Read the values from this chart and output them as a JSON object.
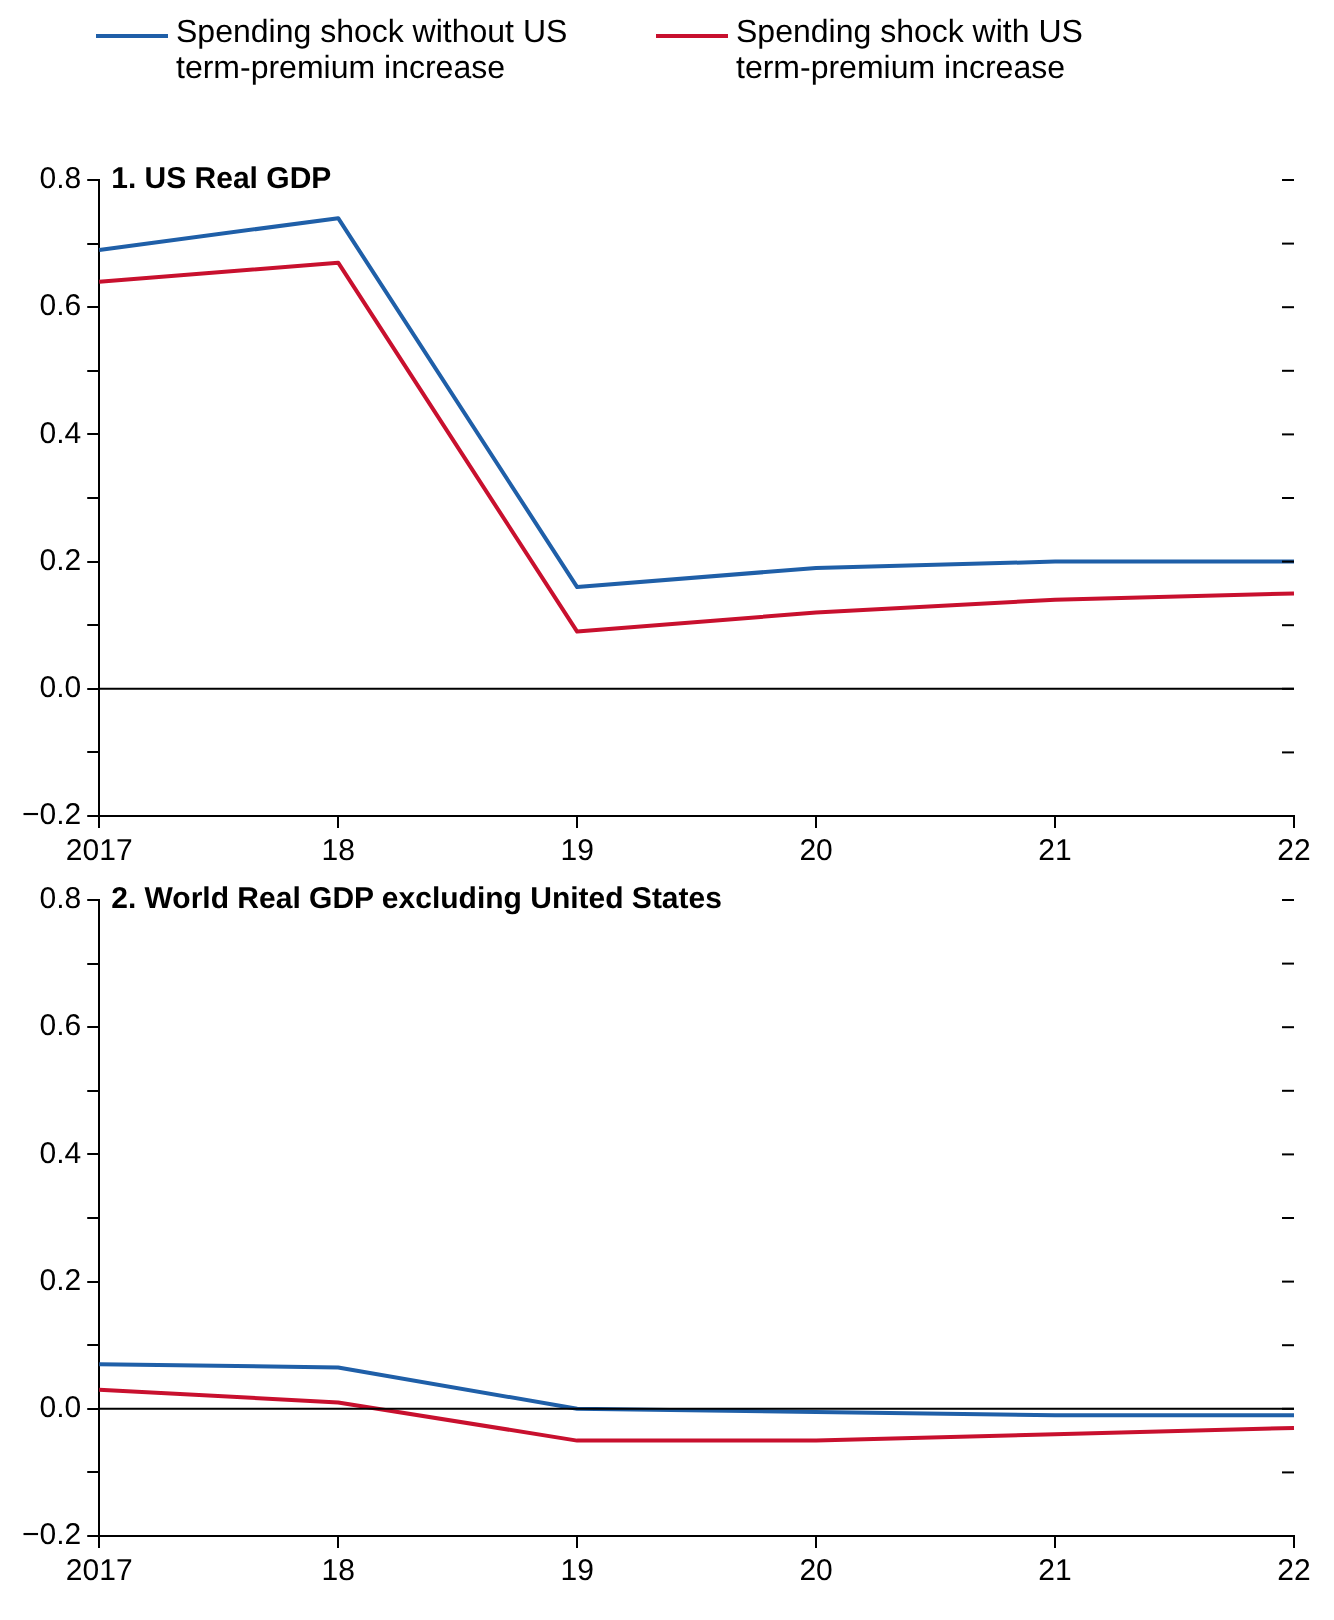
{
  "chart_data": [
    {
      "type": "line",
      "title": "1. US Real GDP",
      "categories": [
        "2017",
        "18",
        "19",
        "20",
        "21",
        "22"
      ],
      "series": [
        {
          "name": "Spending shock without US term-premium increase",
          "color": "#1f5fa8",
          "values": [
            0.69,
            0.74,
            0.16,
            0.19,
            0.2,
            0.2
          ]
        },
        {
          "name": "Spending shock with US term-premium increase",
          "color": "#c8102e",
          "values": [
            0.64,
            0.67,
            0.09,
            0.12,
            0.14,
            0.15
          ]
        }
      ],
      "ylim": [
        -0.2,
        0.8
      ],
      "yticks": [
        {
          "value": -0.2,
          "label": "−0.2"
        },
        {
          "value": -0.1,
          "label": null
        },
        {
          "value": 0,
          "label": "0.0"
        },
        {
          "value": 0.1,
          "label": null
        },
        0.2,
        {
          "value": 0.3,
          "label": null
        },
        0.4,
        {
          "value": 0.5,
          "label": null
        },
        0.6,
        {
          "value": 0.7,
          "label": null
        },
        0.8
      ],
      "ref_lines": [
        {
          "axis": "y",
          "value": 0,
          "color": "#000000"
        }
      ],
      "grid": false,
      "legend": "top",
      "marker": "none",
      "line_style": "solid"
    },
    {
      "type": "line",
      "title": "2. World Real GDP excluding United States",
      "categories": [
        "2017",
        "18",
        "19",
        "20",
        "21",
        "22"
      ],
      "series": [
        {
          "color": "#1f5fa8",
          "values": [
            0.07,
            0.065,
            0.0,
            -0.005,
            -0.01,
            -0.01
          ]
        },
        {
          "color": "#c8102e",
          "values": [
            0.03,
            0.01,
            -0.05,
            -0.05,
            -0.04,
            -0.03
          ]
        }
      ],
      "ylim": [
        -0.2,
        0.8
      ],
      "yticks": [
        {
          "value": -0.2,
          "label": "−0.2"
        },
        {
          "value": -0.1,
          "label": null
        },
        {
          "value": 0,
          "label": "0.0"
        },
        {
          "value": 0.1,
          "label": null
        },
        0.2,
        {
          "value": 0.3,
          "label": null
        },
        0.4,
        {
          "value": 0.5,
          "label": null
        },
        0.6,
        {
          "value": 0.7,
          "label": null
        },
        0.8
      ],
      "ref_lines": [
        {
          "axis": "y",
          "value": 0,
          "color": "#000000"
        }
      ],
      "grid": false,
      "legend": false,
      "marker": "none",
      "line_style": "solid"
    }
  ]
}
